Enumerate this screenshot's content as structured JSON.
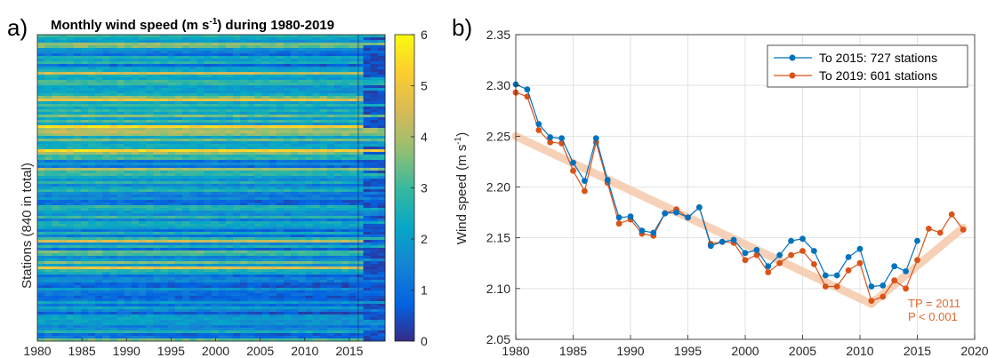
{
  "chart_data": [
    {
      "panel": "a)",
      "type": "heatmap",
      "title": "Monthly wind speed (m s-1) during 1980-2019",
      "title_parts": {
        "before": "Monthly wind speed (m s",
        "sup": "-1",
        "after": ") during 1980-2019"
      },
      "ylabel": "Stations (840 in total)",
      "xlim": [
        1980,
        2019
      ],
      "xticks": [
        1980,
        1985,
        1990,
        1995,
        2000,
        2005,
        2010,
        2015
      ],
      "colorbar": {
        "min": 0,
        "max": 6,
        "ticks": [
          0,
          1,
          2,
          3,
          4,
          5,
          6
        ],
        "colormap": "parula"
      }
    },
    {
      "panel": "b)",
      "type": "line",
      "ylabel": "Wind speed (m s-1)",
      "ylabel_parts": {
        "before": "Wind speed (m s",
        "sup": "-1",
        "after": ")"
      },
      "xlim": [
        1980,
        2020
      ],
      "ylim": [
        2.05,
        2.35
      ],
      "xticks": [
        1980,
        1985,
        1990,
        1995,
        2000,
        2005,
        2010,
        2015,
        2020
      ],
      "yticks": [
        "2.05",
        "2.10",
        "2.15",
        "2.20",
        "2.25",
        "2.30",
        "2.35"
      ],
      "grid": true,
      "legend_placement": "top-right",
      "series": [
        {
          "name": "To 2015: 727 stations",
          "color": "#0072bd",
          "x": [
            1980,
            1981,
            1982,
            1983,
            1984,
            1985,
            1986,
            1987,
            1988,
            1989,
            1990,
            1991,
            1992,
            1993,
            1994,
            1995,
            1996,
            1997,
            1998,
            1999,
            2000,
            2001,
            2002,
            2003,
            2004,
            2005,
            2006,
            2007,
            2008,
            2009,
            2010,
            2011,
            2012,
            2013,
            2014,
            2015
          ],
          "y": [
            2.301,
            2.296,
            2.262,
            2.249,
            2.248,
            2.224,
            2.206,
            2.248,
            2.207,
            2.17,
            2.171,
            2.157,
            2.155,
            2.174,
            2.175,
            2.17,
            2.18,
            2.142,
            2.146,
            2.148,
            2.135,
            2.138,
            2.122,
            2.133,
            2.147,
            2.149,
            2.137,
            2.113,
            2.113,
            2.131,
            2.139,
            2.102,
            2.103,
            2.122,
            2.117,
            2.147
          ]
        },
        {
          "name": "To 2019: 601 stations",
          "color": "#d95319",
          "x": [
            1980,
            1981,
            1982,
            1983,
            1984,
            1985,
            1986,
            1987,
            1988,
            1989,
            1990,
            1991,
            1992,
            1993,
            1994,
            1995,
            1996,
            1997,
            1998,
            1999,
            2000,
            2001,
            2002,
            2003,
            2004,
            2005,
            2006,
            2007,
            2008,
            2009,
            2010,
            2011,
            2012,
            2013,
            2014,
            2015,
            2016,
            2017,
            2018,
            2019
          ],
          "y": [
            2.293,
            2.289,
            2.256,
            2.244,
            2.243,
            2.216,
            2.196,
            2.244,
            2.204,
            2.164,
            2.168,
            2.154,
            2.152,
            2.174,
            2.178,
            2.17,
            2.18,
            2.144,
            2.146,
            2.145,
            2.128,
            2.133,
            2.116,
            2.125,
            2.133,
            2.137,
            2.124,
            2.102,
            2.102,
            2.118,
            2.125,
            2.088,
            2.092,
            2.108,
            2.1,
            2.128,
            2.159,
            2.155,
            2.173,
            2.158
          ]
        }
      ],
      "trend": {
        "color": "#f5c9ab",
        "segments": [
          {
            "x": [
              1980,
              2011
            ],
            "y": [
              2.25,
              2.085
            ]
          },
          {
            "x": [
              2011,
              2019
            ],
            "y": [
              2.085,
              2.16
            ]
          }
        ]
      },
      "annotations": [
        "TP = 2011",
        "P < 0.001"
      ]
    }
  ]
}
